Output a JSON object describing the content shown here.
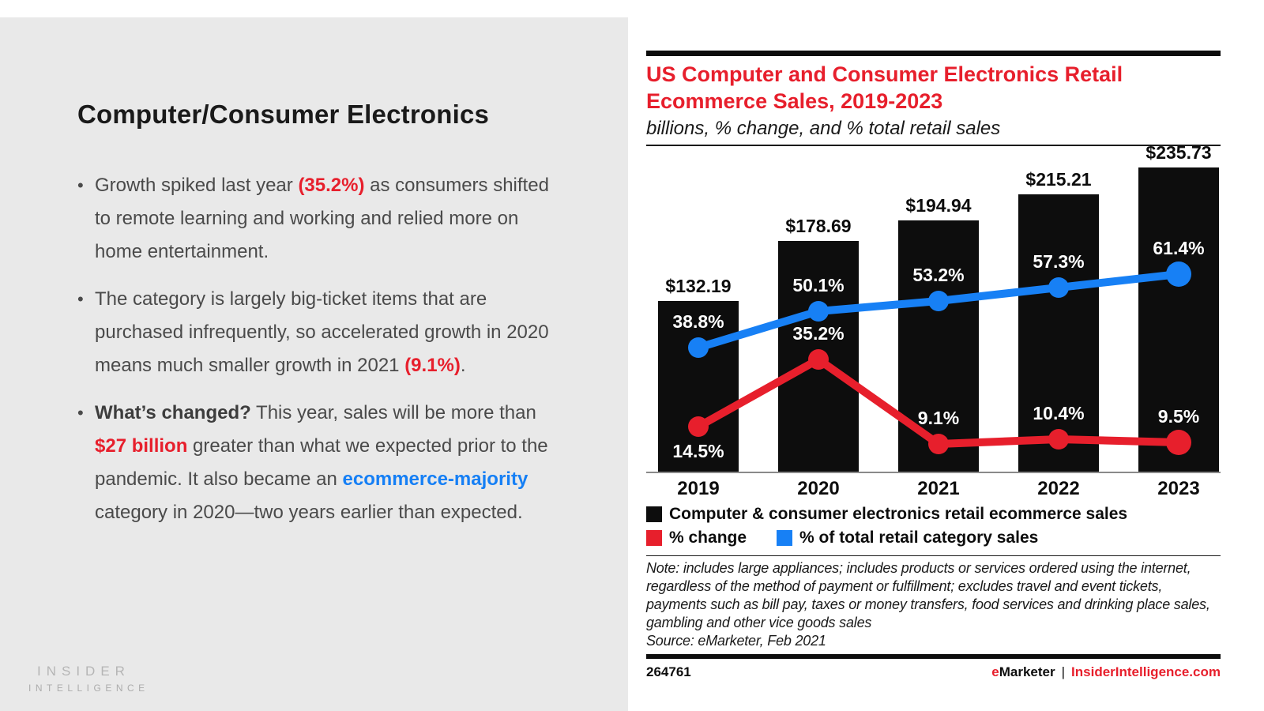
{
  "left_panel": {
    "title": "Computer/Consumer Electronics",
    "bullets": [
      {
        "segments": [
          {
            "text": "Growth spiked last year ",
            "style": "plain"
          },
          {
            "text": "(35.2%)",
            "style": "red"
          },
          {
            "text": " as consumers shifted to remote learning and working and relied more on home entertainment.",
            "style": "plain"
          }
        ]
      },
      {
        "segments": [
          {
            "text": "The category is largely big-ticket items that are purchased infrequently, so accelerated growth in 2020 means much smaller growth in 2021 ",
            "style": "plain"
          },
          {
            "text": "(9.1%)",
            "style": "red"
          },
          {
            "text": ".",
            "style": "plain"
          }
        ]
      },
      {
        "segments": [
          {
            "text": "What’s changed?",
            "style": "bold"
          },
          {
            "text": " This year, sales will be more than ",
            "style": "plain"
          },
          {
            "text": "$27 billion",
            "style": "red"
          },
          {
            "text": " greater than what we expected prior to the pandemic. It also became an ",
            "style": "plain"
          },
          {
            "text": "ecommerce-majority",
            "style": "blue"
          },
          {
            "text": " category in 2020—two years earlier than expected.",
            "style": "plain"
          }
        ]
      }
    ],
    "logo": {
      "line1": "INSIDER",
      "line2": "INTELLIGENCE"
    }
  },
  "chart": {
    "title_lines": [
      "US Computer and Consumer Electronics Retail",
      "Ecommerce Sales, 2019-2023"
    ],
    "subtitle": "billions, % change, and % total retail sales",
    "legend": [
      {
        "label": "Computer & consumer electronics retail ecommerce sales",
        "color": "#0d0d0d"
      },
      {
        "label": "% change",
        "color": "#e71f2c"
      },
      {
        "label": "% of total retail category sales",
        "color": "#1780f5"
      }
    ],
    "note": "Note: includes large appliances; includes products or services ordered using the internet, regardless of the method of payment or fulfillment; excludes travel and event tickets, payments such as bill pay, taxes or money transfers, food services and drinking place sales, gambling and other vice goods sales",
    "source": "Source: eMarketer, Feb 2021",
    "chart_id": "264761",
    "brand": {
      "emarketer_e": "e",
      "emarketer_rest": "Marketer",
      "separator": "|",
      "site": "InsiderIntelligence.com"
    }
  },
  "chart_data": {
    "type": "bar",
    "subtype": "bar+line combo",
    "title": "US Computer and Consumer Electronics Retail Ecommerce Sales, 2019-2023",
    "subtitle": "billions, % change, and % total retail sales",
    "categories": [
      "2019",
      "2020",
      "2021",
      "2022",
      "2023"
    ],
    "series": [
      {
        "name": "Computer & consumer electronics retail ecommerce sales",
        "type": "bar",
        "unit": "billions USD",
        "color": "#0d0d0d",
        "values": [
          132.19,
          178.69,
          194.94,
          215.21,
          235.73
        ],
        "labels": [
          "$132.19",
          "$178.69",
          "$194.94",
          "$215.21",
          "$235.73"
        ]
      },
      {
        "name": "% change",
        "type": "line",
        "unit": "%",
        "color": "#e71f2c",
        "values": [
          14.5,
          35.2,
          9.1,
          10.4,
          9.5
        ],
        "labels": [
          "14.5%",
          "35.2%",
          "9.1%",
          "10.4%",
          "9.5%"
        ],
        "label_positions": [
          "below",
          "above",
          "above",
          "above",
          "above"
        ]
      },
      {
        "name": "% of total retail category sales",
        "type": "line",
        "unit": "%",
        "color": "#1780f5",
        "values": [
          38.8,
          50.1,
          53.2,
          57.3,
          61.4
        ],
        "labels": [
          "38.8%",
          "50.1%",
          "53.2%",
          "57.3%",
          "61.4%"
        ],
        "label_positions": [
          "above",
          "above",
          "above",
          "above",
          "above"
        ]
      }
    ],
    "legend_position": "bottom",
    "grid": false
  }
}
